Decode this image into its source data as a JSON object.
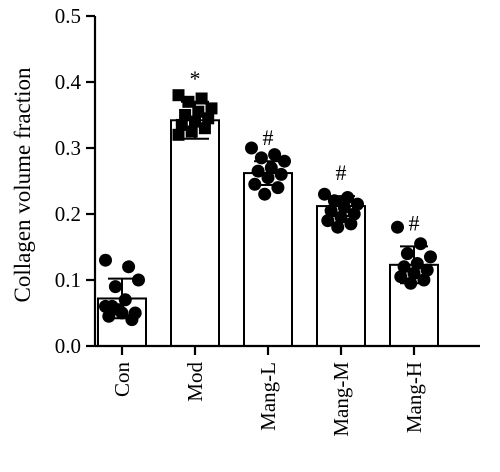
{
  "chart_data": {
    "type": "bar",
    "ylabel": "Collagen volume fraction",
    "xlabel": "",
    "ylim": [
      0,
      0.5
    ],
    "yticks": [
      "0.0",
      "0.1",
      "0.2",
      "0.3",
      "0.4",
      "0.5"
    ],
    "grid": false,
    "categories": [
      "Con",
      "Mod",
      "Mang-L",
      "Mang-M",
      "Mang-H"
    ],
    "values": [
      0.072,
      0.342,
      0.262,
      0.212,
      0.123
    ],
    "error": [
      0.03,
      0.028,
      0.018,
      0.015,
      0.028
    ],
    "annotations": [
      "",
      "*",
      "#",
      "#",
      "#"
    ],
    "marker": [
      "circle",
      "square",
      "circle",
      "circle",
      "circle"
    ],
    "points": [
      [
        0.13,
        0.12,
        0.09,
        0.1,
        0.07,
        0.06,
        0.05,
        0.05,
        0.045,
        0.04,
        0.055,
        0.06
      ],
      [
        0.38,
        0.375,
        0.37,
        0.36,
        0.355,
        0.35,
        0.345,
        0.34,
        0.335,
        0.33,
        0.325,
        0.32
      ],
      [
        0.3,
        0.29,
        0.285,
        0.28,
        0.27,
        0.265,
        0.26,
        0.255,
        0.245,
        0.24,
        0.23
      ],
      [
        0.23,
        0.225,
        0.22,
        0.215,
        0.21,
        0.205,
        0.2,
        0.195,
        0.19,
        0.185,
        0.18
      ],
      [
        0.18,
        0.155,
        0.14,
        0.135,
        0.125,
        0.12,
        0.115,
        0.11,
        0.105,
        0.1,
        0.095
      ]
    ]
  }
}
